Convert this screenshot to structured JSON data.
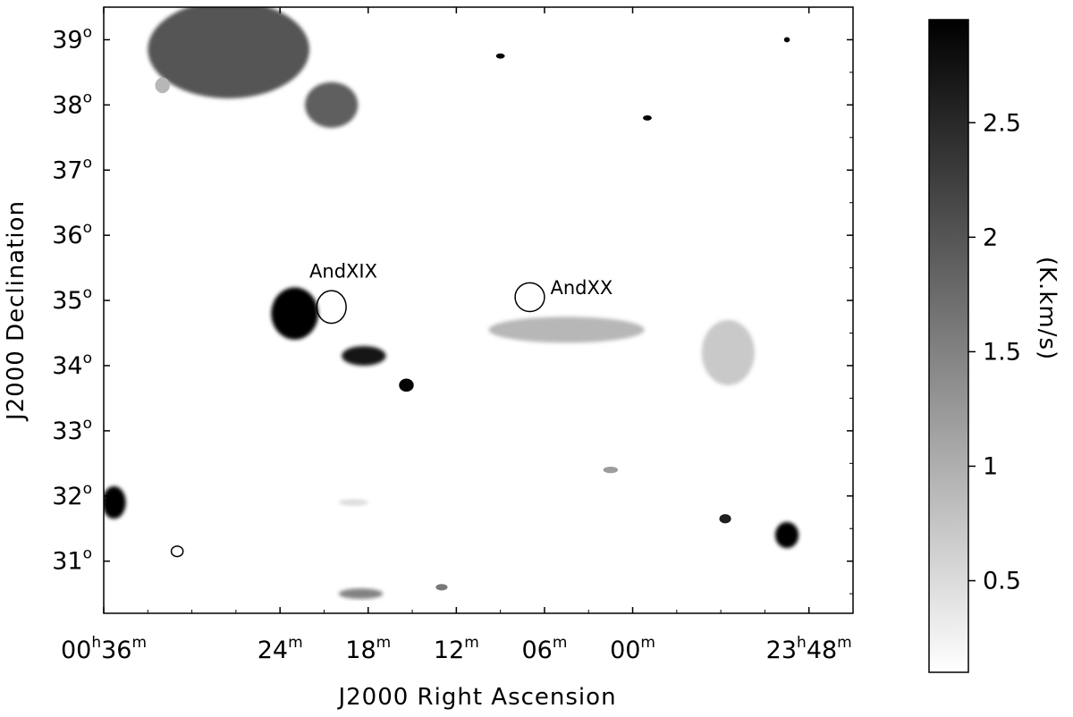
{
  "chart_data": {
    "type": "heatmap",
    "xlabel": "J2000 Right Ascension",
    "ylabel": "J2000 Declination",
    "colorbar_label": "(K.km/s)",
    "x_unit": "RA minutes (0h00m = 0, 23h48m = -12)",
    "xlim": [
      36,
      -15
    ],
    "ylim": [
      30.2,
      39.5
    ],
    "x_ticks": [
      {
        "value": 36,
        "h": "00",
        "hsup": "h",
        "m": "36",
        "msup": "m"
      },
      {
        "value": 24,
        "h": "",
        "hsup": "",
        "m": "24",
        "msup": "m"
      },
      {
        "value": 18,
        "h": "",
        "hsup": "",
        "m": "18",
        "msup": "m"
      },
      {
        "value": 12,
        "h": "",
        "hsup": "",
        "m": "12",
        "msup": "m"
      },
      {
        "value": 6,
        "h": "",
        "hsup": "",
        "m": "06",
        "msup": "m"
      },
      {
        "value": 0,
        "h": "",
        "hsup": "",
        "m": "00",
        "msup": "m"
      },
      {
        "value": -12,
        "h": "23",
        "hsup": "h",
        "m": "48",
        "msup": "m"
      }
    ],
    "y_ticks": [
      {
        "value": 39,
        "label": "39",
        "sup": "o"
      },
      {
        "value": 38,
        "label": "38",
        "sup": "o"
      },
      {
        "value": 37,
        "label": "37",
        "sup": "o"
      },
      {
        "value": 36,
        "label": "36",
        "sup": "o"
      },
      {
        "value": 35,
        "label": "35",
        "sup": "o"
      },
      {
        "value": 34,
        "label": "34",
        "sup": "o"
      },
      {
        "value": 33,
        "label": "33",
        "sup": "o"
      },
      {
        "value": 32,
        "label": "32",
        "sup": "o"
      },
      {
        "value": 31,
        "label": "31",
        "sup": "o"
      }
    ],
    "colorbar": {
      "range": [
        0.1,
        2.95
      ],
      "ticks": [
        {
          "value": 0.5,
          "label": "0.5"
        },
        {
          "value": 1,
          "label": "1"
        },
        {
          "value": 1.5,
          "label": "1.5"
        },
        {
          "value": 2,
          "label": "2"
        },
        {
          "value": 2.5,
          "label": "2.5"
        }
      ],
      "color_low": "#ffffff",
      "color_high": "#000000"
    },
    "blobs": [
      {
        "name": "north-cloud",
        "x": 27.5,
        "y": 38.85,
        "rx": 5.5,
        "ry": 0.75,
        "value": 2.0
      },
      {
        "name": "north-cloud-extension",
        "x": 20.5,
        "y": 38.0,
        "rx": 1.8,
        "ry": 0.35,
        "value": 1.9
      },
      {
        "name": "north-cloud-spot",
        "x": 32.0,
        "y": 38.3,
        "rx": 0.5,
        "ry": 0.12,
        "value": 0.9
      },
      {
        "name": "stream-head",
        "x": 23.0,
        "y": 34.8,
        "rx": 1.6,
        "ry": 0.4,
        "value": 2.95
      },
      {
        "name": "stream-middle",
        "x": 18.3,
        "y": 34.15,
        "rx": 1.5,
        "ry": 0.15,
        "value": 2.7
      },
      {
        "name": "stream-tail",
        "x": 15.4,
        "y": 33.7,
        "rx": 0.5,
        "ry": 0.1,
        "value": 2.9
      },
      {
        "name": "diffuse-band",
        "x": 4.5,
        "y": 34.55,
        "rx": 5.3,
        "ry": 0.2,
        "value": 0.9
      },
      {
        "name": "diffuse-east-patch",
        "x": -6.5,
        "y": 34.2,
        "rx": 1.8,
        "ry": 0.5,
        "value": 0.7
      },
      {
        "name": "west-edge-blob",
        "x": 35.3,
        "y": 31.9,
        "rx": 0.8,
        "ry": 0.25,
        "value": 2.95
      },
      {
        "name": "southeast-blob",
        "x": -10.5,
        "y": 31.4,
        "rx": 0.8,
        "ry": 0.2,
        "value": 2.9
      },
      {
        "name": "southeast-spot",
        "x": -6.3,
        "y": 31.65,
        "rx": 0.4,
        "ry": 0.07,
        "value": 2.6
      },
      {
        "name": "south-patch",
        "x": 18.5,
        "y": 30.5,
        "rx": 1.5,
        "ry": 0.08,
        "value": 1.5
      },
      {
        "name": "mid-spot",
        "x": 1.5,
        "y": 32.4,
        "rx": 0.5,
        "ry": 0.05,
        "value": 1.2
      },
      {
        "name": "faint-south-spot",
        "x": 19.0,
        "y": 31.9,
        "rx": 1.0,
        "ry": 0.05,
        "value": 0.5
      },
      {
        "name": "point-north-1",
        "x": 9.0,
        "y": 38.75,
        "rx": 0.3,
        "ry": 0.04,
        "value": 2.9
      },
      {
        "name": "point-north-2",
        "x": -1.0,
        "y": 37.8,
        "rx": 0.3,
        "ry": 0.04,
        "value": 2.9
      },
      {
        "name": "point-north-3",
        "x": -10.5,
        "y": 39.0,
        "rx": 0.2,
        "ry": 0.04,
        "value": 2.9
      },
      {
        "name": "point-south",
        "x": 13.0,
        "y": 30.6,
        "rx": 0.4,
        "ry": 0.05,
        "value": 1.6
      }
    ],
    "annotations": [
      {
        "text": "AndXIX",
        "x": 20.5,
        "y": 34.9,
        "r_ra": 1.0,
        "r_dec": 0.25,
        "label_x": 22.0,
        "label_y": 35.35
      },
      {
        "text": "AndXX",
        "x": 7.0,
        "y": 35.05,
        "r_ra": 1.0,
        "r_dec": 0.22,
        "label_x": 5.6,
        "label_y": 35.1
      }
    ],
    "markers": [
      {
        "name": "beam-marker",
        "x": 31.0,
        "y": 31.15,
        "r_ra": 0.4,
        "r_dec": 0.08
      }
    ]
  }
}
